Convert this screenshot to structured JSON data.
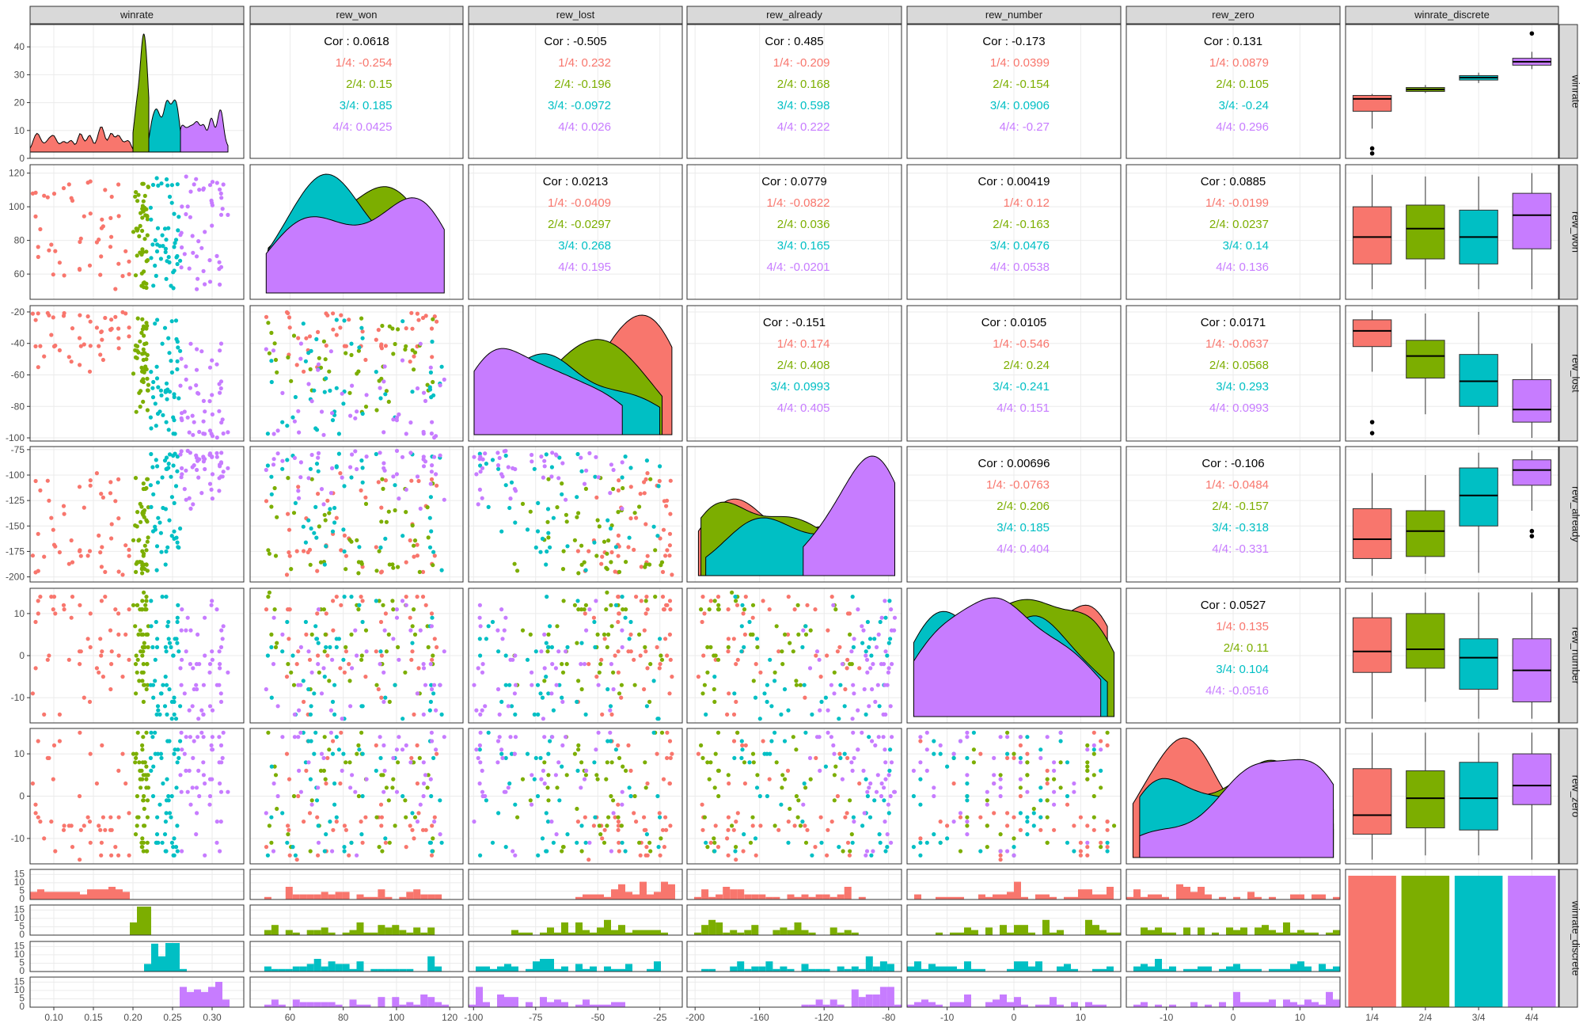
{
  "colors": {
    "1/4": "#F8766D",
    "2/4": "#7CAE00",
    "3/4": "#00BFC4",
    "4/4": "#C77CFF",
    "cor_total": "#000000"
  },
  "chart_data": {
    "type": "scatter",
    "title": "",
    "grid": true,
    "legend": "none",
    "variables": [
      "winrate",
      "rew_won",
      "rew_lost",
      "rew_already",
      "rew_number",
      "rew_zero"
    ],
    "discrete_variable": "winrate_discrete",
    "groups": [
      "1/4",
      "2/4",
      "3/4",
      "4/4"
    ],
    "ranges": {
      "winrate": [
        0.07,
        0.34
      ],
      "rew_won": [
        45,
        125
      ],
      "rew_lost": [
        -102,
        -16
      ],
      "rew_already": [
        -205,
        -72
      ],
      "rew_number": [
        -16,
        16
      ],
      "rew_zero": [
        -16,
        16
      ]
    },
    "x_ticks": {
      "winrate": [
        "0.10",
        "0.15",
        "0.20",
        "0.25",
        "0.30"
      ],
      "rew_won": [
        "60",
        "80",
        "100",
        "120"
      ],
      "rew_lost": [
        "-100",
        "-75",
        "-50",
        "-25"
      ],
      "rew_already": [
        "-200",
        "-160",
        "-120",
        "-80"
      ],
      "rew_number": [
        "-10",
        "0",
        "10"
      ],
      "rew_zero": [
        "-10",
        "0",
        "10"
      ]
    },
    "y_ticks": {
      "winrate_density": [
        "0",
        "10",
        "20",
        "30",
        "40"
      ],
      "rew_won": [
        "60",
        "80",
        "100",
        "120"
      ],
      "rew_lost": [
        "-100",
        "-80",
        "-60",
        "-40",
        "-20"
      ],
      "rew_already": [
        "-200",
        "-175",
        "-150",
        "-125",
        "-100",
        "-75"
      ],
      "rew_number": [
        "-10",
        "0",
        "10"
      ],
      "rew_zero": [
        "-10",
        "0",
        "10"
      ],
      "histogram": [
        "0",
        "5",
        "10",
        "15"
      ]
    },
    "correlations": [
      {
        "row": "winrate",
        "col": "rew_won",
        "total": "Cor : 0.0618",
        "groups": [
          "1/4: -0.254",
          "2/4: 0.15",
          "3/4: 0.185",
          "4/4: 0.0425"
        ]
      },
      {
        "row": "winrate",
        "col": "rew_lost",
        "total": "Cor : -0.505",
        "groups": [
          "1/4: 0.232",
          "2/4: -0.196",
          "3/4: -0.0972",
          "4/4: 0.026"
        ]
      },
      {
        "row": "winrate",
        "col": "rew_already",
        "total": "Cor : 0.485",
        "groups": [
          "1/4: -0.209",
          "2/4: 0.168",
          "3/4: 0.598",
          "4/4: 0.222"
        ]
      },
      {
        "row": "winrate",
        "col": "rew_number",
        "total": "Cor : -0.173",
        "groups": [
          "1/4: 0.0399",
          "2/4: -0.154",
          "3/4: 0.0906",
          "4/4: -0.27"
        ]
      },
      {
        "row": "winrate",
        "col": "rew_zero",
        "total": "Cor : 0.131",
        "groups": [
          "1/4: 0.0879",
          "2/4: 0.105",
          "3/4: -0.24",
          "4/4: 0.296"
        ]
      },
      {
        "row": "rew_won",
        "col": "rew_lost",
        "total": "Cor : 0.0213",
        "groups": [
          "1/4: -0.0409",
          "2/4: -0.0297",
          "3/4: 0.268",
          "4/4: 0.195"
        ]
      },
      {
        "row": "rew_won",
        "col": "rew_already",
        "total": "Cor : 0.0779",
        "groups": [
          "1/4: -0.0822",
          "2/4: 0.036",
          "3/4: 0.165",
          "4/4: -0.0201"
        ]
      },
      {
        "row": "rew_won",
        "col": "rew_number",
        "total": "Cor : 0.00419",
        "groups": [
          "1/4: 0.12",
          "2/4: -0.163",
          "3/4: 0.0476",
          "4/4: 0.0538"
        ]
      },
      {
        "row": "rew_won",
        "col": "rew_zero",
        "total": "Cor : 0.0885",
        "groups": [
          "1/4: -0.0199",
          "2/4: 0.0237",
          "3/4: 0.14",
          "4/4: 0.136"
        ]
      },
      {
        "row": "rew_lost",
        "col": "rew_already",
        "total": "Cor : -0.151",
        "groups": [
          "1/4: 0.174",
          "2/4: 0.408",
          "3/4: 0.0993",
          "4/4: 0.405"
        ]
      },
      {
        "row": "rew_lost",
        "col": "rew_number",
        "total": "Cor : 0.0105",
        "groups": [
          "1/4: -0.546",
          "2/4: 0.24",
          "3/4: -0.241",
          "4/4: 0.151"
        ]
      },
      {
        "row": "rew_lost",
        "col": "rew_zero",
        "total": "Cor : 0.0171",
        "groups": [
          "1/4: -0.0637",
          "2/4: 0.0568",
          "3/4: 0.293",
          "4/4: 0.0993"
        ]
      },
      {
        "row": "rew_already",
        "col": "rew_number",
        "total": "Cor : 0.00696",
        "groups": [
          "1/4: -0.0763",
          "2/4: 0.206",
          "3/4: 0.185",
          "4/4: 0.404"
        ]
      },
      {
        "row": "rew_already",
        "col": "rew_zero",
        "total": "Cor : -0.106",
        "groups": [
          "1/4: -0.0484",
          "2/4: -0.157",
          "3/4: -0.318",
          "4/4: -0.331"
        ]
      },
      {
        "row": "rew_number",
        "col": "rew_zero",
        "total": "Cor : 0.0527",
        "groups": [
          "1/4: 0.135",
          "2/4: 0.11",
          "3/4: 0.104",
          "4/4: -0.0516"
        ]
      }
    ],
    "group_ranges": {
      "winrate": {
        "1/4": [
          0.07,
          0.2
        ],
        "2/4": [
          0.2,
          0.22
        ],
        "3/4": [
          0.22,
          0.26
        ],
        "4/4": [
          0.26,
          0.32
        ]
      }
    },
    "boxplots": {
      "winrate": {
        "1/4": {
          "min": 0.13,
          "q1": 0.165,
          "median": 0.19,
          "q3": 0.197,
          "max": 0.2,
          "outliers": [
            0.08,
            0.09
          ]
        },
        "2/4": {
          "min": 0.202,
          "q1": 0.205,
          "median": 0.209,
          "q3": 0.213,
          "max": 0.218,
          "outliers": []
        },
        "3/4": {
          "min": 0.222,
          "q1": 0.228,
          "median": 0.233,
          "q3": 0.237,
          "max": 0.243,
          "outliers": []
        },
        "4/4": {
          "min": 0.25,
          "q1": 0.258,
          "median": 0.265,
          "q3": 0.272,
          "max": 0.285,
          "outliers": [
            0.322
          ]
        }
      },
      "rew_won": {
        "1/4": {
          "min": 51,
          "q1": 66,
          "median": 82,
          "q3": 100,
          "max": 119,
          "outliers": []
        },
        "2/4": {
          "min": 51,
          "q1": 69,
          "median": 87,
          "q3": 101,
          "max": 118,
          "outliers": []
        },
        "3/4": {
          "min": 51,
          "q1": 66,
          "median": 82,
          "q3": 98,
          "max": 118,
          "outliers": []
        },
        "4/4": {
          "min": 51,
          "q1": 75,
          "median": 95,
          "q3": 108,
          "max": 120,
          "outliers": []
        }
      },
      "rew_lost": {
        "1/4": {
          "min": -58,
          "q1": -42,
          "median": -32,
          "q3": -25,
          "max": -19,
          "outliers": [
            -90,
            -97
          ]
        },
        "2/4": {
          "min": -85,
          "q1": -62,
          "median": -48,
          "q3": -38,
          "max": -21,
          "outliers": []
        },
        "3/4": {
          "min": -98,
          "q1": -80,
          "median": -64,
          "q3": -47,
          "max": -20,
          "outliers": []
        },
        "4/4": {
          "min": -100,
          "q1": -90,
          "median": -82,
          "q3": -63,
          "max": -40,
          "outliers": []
        }
      },
      "rew_already": {
        "1/4": {
          "min": -199,
          "q1": -182,
          "median": -163,
          "q3": -133,
          "max": -98,
          "outliers": []
        },
        "2/4": {
          "min": -197,
          "q1": -180,
          "median": -155,
          "q3": -135,
          "max": -100,
          "outliers": []
        },
        "3/4": {
          "min": -196,
          "q1": -150,
          "median": -120,
          "q3": -93,
          "max": -78,
          "outliers": []
        },
        "4/4": {
          "min": -135,
          "q1": -110,
          "median": -95,
          "q3": -85,
          "max": -76,
          "outliers": [
            -155,
            -160
          ]
        }
      },
      "rew_number": {
        "1/4": {
          "min": -15,
          "q1": -4,
          "median": 1,
          "q3": 9,
          "max": 15,
          "outliers": []
        },
        "2/4": {
          "min": -11,
          "q1": -3,
          "median": 1.5,
          "q3": 10,
          "max": 15,
          "outliers": []
        },
        "3/4": {
          "min": -15,
          "q1": -8,
          "median": -0.5,
          "q3": 4,
          "max": 15,
          "outliers": []
        },
        "4/4": {
          "min": -15,
          "q1": -11,
          "median": -3.5,
          "q3": 4,
          "max": 15,
          "outliers": []
        }
      },
      "rew_zero": {
        "1/4": {
          "min": -15,
          "q1": -9,
          "median": -4.5,
          "q3": 6.5,
          "max": 15,
          "outliers": []
        },
        "2/4": {
          "min": -14,
          "q1": -7.5,
          "median": -0.5,
          "q3": 6,
          "max": 15,
          "outliers": []
        },
        "3/4": {
          "min": -14,
          "q1": -8,
          "median": -0.5,
          "q3": 8,
          "max": 15,
          "outliers": []
        },
        "4/4": {
          "min": -15,
          "q1": -2,
          "median": 2.5,
          "q3": 10,
          "max": 15,
          "outliers": []
        }
      }
    },
    "group_counts": [
      48,
      48,
      48,
      48
    ]
  }
}
